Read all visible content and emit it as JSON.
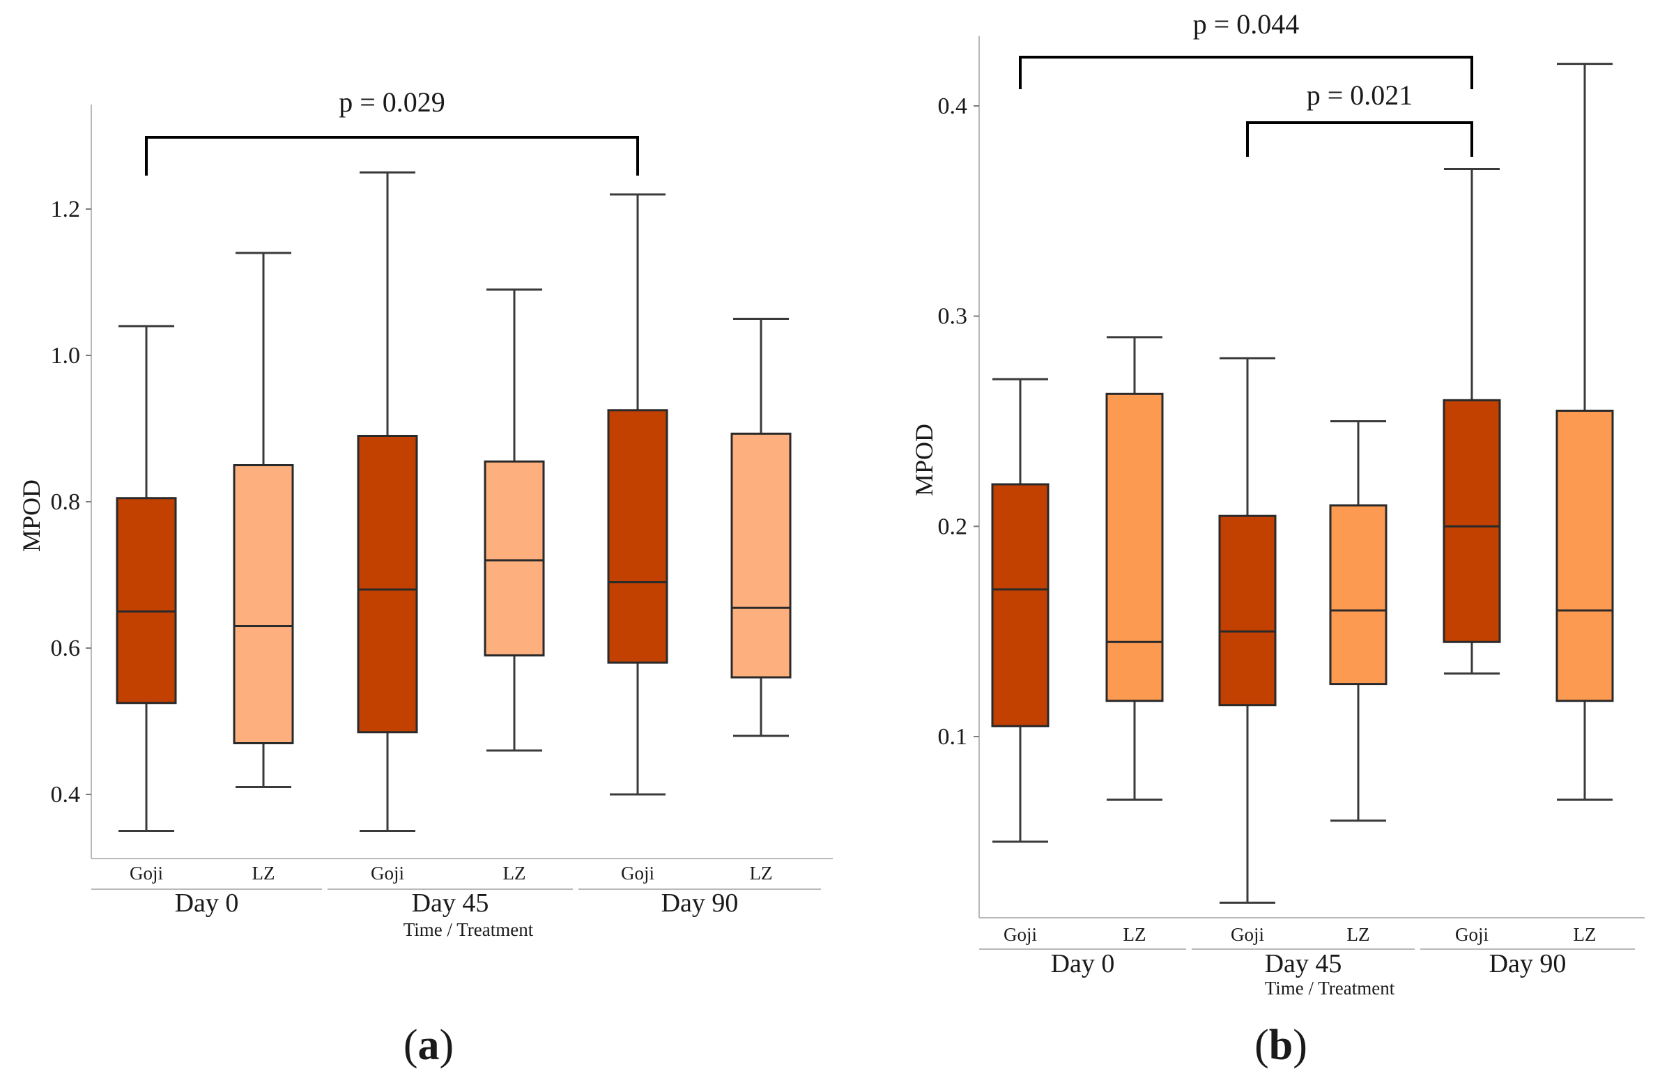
{
  "chart_data": [
    {
      "type": "boxplot",
      "panel_label": "(a)",
      "ylabel": "MPOD",
      "xlabel": "Time / Treatment",
      "yticks": [
        0.4,
        0.6,
        0.8,
        1.0,
        1.2
      ],
      "ytick_labels": [
        "0.4",
        "0.6",
        "0.8",
        "1.0",
        "1.2"
      ],
      "groups": [
        "Day 0",
        "Day 45",
        "Day 90"
      ],
      "boxes": [
        {
          "group": "Day 0",
          "treatment": "Goji",
          "min": 0.35,
          "q1": 0.525,
          "median": 0.65,
          "q3": 0.805,
          "max": 1.04,
          "color": "#c24000"
        },
        {
          "group": "Day 0",
          "treatment": "LZ",
          "min": 0.41,
          "q1": 0.47,
          "median": 0.63,
          "q3": 0.85,
          "max": 1.14,
          "color": "#fdb07e"
        },
        {
          "group": "Day 45",
          "treatment": "Goji",
          "min": 0.35,
          "q1": 0.485,
          "median": 0.68,
          "q3": 0.89,
          "max": 1.25,
          "color": "#c24000"
        },
        {
          "group": "Day 45",
          "treatment": "LZ",
          "min": 0.46,
          "q1": 0.59,
          "median": 0.72,
          "q3": 0.855,
          "max": 1.09,
          "color": "#fdb07e"
        },
        {
          "group": "Day 90",
          "treatment": "Goji",
          "min": 0.4,
          "q1": 0.58,
          "median": 0.69,
          "q3": 0.925,
          "max": 1.22,
          "color": "#c24000"
        },
        {
          "group": "Day 90",
          "treatment": "LZ",
          "min": 0.48,
          "q1": 0.56,
          "median": 0.655,
          "q3": 0.893,
          "max": 1.05,
          "color": "#fdb07e"
        }
      ],
      "annotations": [
        {
          "label": "p = 0.029",
          "from_box": 0,
          "to_box": 4
        }
      ]
    },
    {
      "type": "boxplot",
      "panel_label": "(b)",
      "ylabel": "MPOD",
      "xlabel": "Time / Treatment",
      "yticks": [
        0.1,
        0.2,
        0.3,
        0.4
      ],
      "ytick_labels": [
        "0.1",
        "0.2",
        "0.3",
        "0.4"
      ],
      "groups": [
        "Day 0",
        "Day 45",
        "Day 90"
      ],
      "boxes": [
        {
          "group": "Day 0",
          "treatment": "Goji",
          "min": 0.05,
          "q1": 0.105,
          "median": 0.17,
          "q3": 0.22,
          "max": 0.27,
          "color": "#c24000"
        },
        {
          "group": "Day 0",
          "treatment": "LZ",
          "min": 0.07,
          "q1": 0.117,
          "median": 0.145,
          "q3": 0.263,
          "max": 0.29,
          "color": "#fd9a52"
        },
        {
          "group": "Day 45",
          "treatment": "Goji",
          "min": 0.021,
          "q1": 0.115,
          "median": 0.15,
          "q3": 0.205,
          "max": 0.28,
          "color": "#c24000"
        },
        {
          "group": "Day 45",
          "treatment": "LZ",
          "min": 0.06,
          "q1": 0.125,
          "median": 0.16,
          "q3": 0.21,
          "max": 0.25,
          "color": "#fd9a52"
        },
        {
          "group": "Day 90",
          "treatment": "Goji",
          "min": 0.13,
          "q1": 0.145,
          "median": 0.2,
          "q3": 0.26,
          "max": 0.37,
          "color": "#c24000"
        },
        {
          "group": "Day 90",
          "treatment": "LZ",
          "min": 0.07,
          "q1": 0.117,
          "median": 0.16,
          "q3": 0.255,
          "max": 0.42,
          "color": "#fd9a52"
        }
      ],
      "annotations": [
        {
          "label": "p = 0.044",
          "from_box": 0,
          "to_box": 4
        },
        {
          "label": "p = 0.021",
          "from_box": 2,
          "to_box": 4
        }
      ]
    }
  ]
}
